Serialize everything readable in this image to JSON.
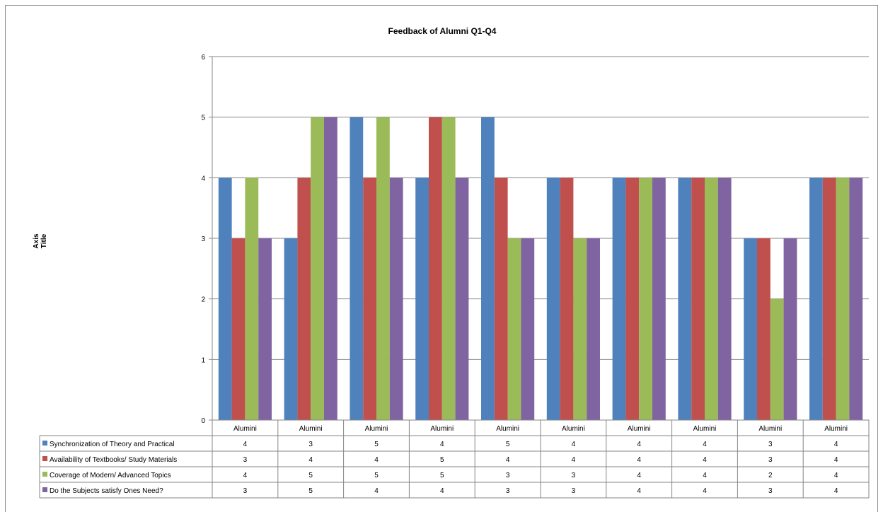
{
  "chart_data": {
    "type": "bar",
    "title": "Feedback of Alumni Q1-Q4",
    "ylabel": "Axis Title",
    "xlabel": "",
    "ylim": [
      0,
      6
    ],
    "yticks": [
      "0",
      "1",
      "2",
      "3",
      "4",
      "5",
      "6"
    ],
    "grid": true,
    "legend": "data-table",
    "categories": [
      "Alumini",
      "Alumini",
      "Alumini",
      "Alumini",
      "Alumini",
      "Alumini",
      "Alumini",
      "Alumini",
      "Alumini",
      "Alumini"
    ],
    "series": [
      {
        "name": "Synchronization of Theory and Practical",
        "color": "#4f81bd",
        "values": [
          4,
          3,
          5,
          4,
          5,
          4,
          4,
          4,
          3,
          4
        ]
      },
      {
        "name": "Availability of Textbooks/ Study Materials",
        "color": "#c0504d",
        "values": [
          3,
          4,
          4,
          5,
          4,
          4,
          4,
          4,
          3,
          4
        ]
      },
      {
        "name": "Coverage of Modern/ Advanced Topics",
        "color": "#9bbb59",
        "values": [
          4,
          5,
          5,
          5,
          3,
          3,
          4,
          4,
          2,
          4
        ]
      },
      {
        "name": "Do the Subjects satisfy Ones Need?",
        "color": "#8064a2",
        "values": [
          3,
          5,
          4,
          4,
          3,
          3,
          4,
          4,
          3,
          4
        ]
      }
    ]
  }
}
